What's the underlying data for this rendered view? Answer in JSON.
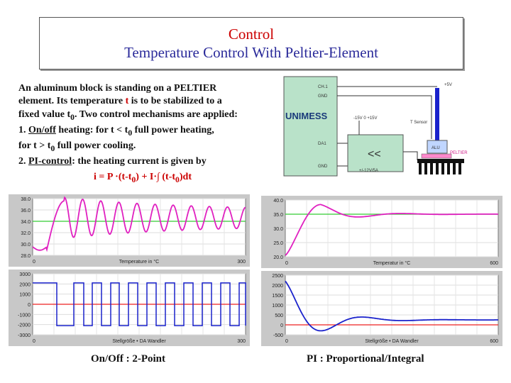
{
  "title": {
    "line1": "Control",
    "line2": "Temperature Control With Peltier-Element"
  },
  "intro": {
    "l1": "An aluminum block is standing on a PELTIER",
    "l2": "element. Its temperature",
    "t": "t",
    "l2b": "is to be stabilized to a",
    "l3": "fixed value t",
    "l3sub": "0",
    "l3b": ". Two control mechanisms are applied:",
    "l4a": "1.",
    "l4b": "On/off",
    "l4c": "heating: for t < t",
    "l4sub": "0",
    "l4d": "full power heating,",
    "l5a": "for t > t",
    "l5sub": "0",
    "l5b": "full power cooling.",
    "l6a": "2.",
    "l6b": "PI-control",
    "l6c": ": the heating current is given by"
  },
  "formula": {
    "a": "i = P ·(t-t",
    "sub1": "0",
    "b": ") + I·∫ (t-t",
    "sub2": "0",
    "c": ")dt"
  },
  "schematic": {
    "brand": "UNIMESS",
    "ch1": "CH.1",
    "gnd1": "GND",
    "da1": "DA1",
    "gnd2": "GND",
    "plus5": "+5V",
    "supply": "-15V   0   +15V",
    "sensor": "T Sensor",
    "alu": "ALU",
    "peltier": "PELTIER",
    "amp": "+/-12V/5A",
    "amp_symbol": "<<"
  },
  "colors": {
    "title_red": "#cc0000",
    "title_blue": "#2a2a9a",
    "trace_magenta": "#e020c0",
    "trace_green": "#33cc33",
    "trace_blue": "#1a22cc",
    "zero_red": "#ee2222",
    "panel_bg": "#c8c8c8"
  },
  "plots": {
    "onoff_temp": {
      "xlabel": "Temperature in °C",
      "x_end": "300",
      "x0": "0",
      "yticks": [
        "38.0",
        "36.0",
        "34.0",
        "32.0",
        "30.0",
        "28.0"
      ],
      "ylim": [
        28,
        38
      ],
      "setpoint": 34,
      "xmax": 300
    },
    "onoff_current": {
      "xlabel": "Stellgröße • DA Wandler",
      "x_end": "300",
      "x0": "0",
      "yticks": [
        "3000",
        "2000",
        "1000",
        "0",
        "-1000",
        "-2000",
        "-3000"
      ],
      "ylim": [
        -3000,
        3000
      ],
      "xmax": 300
    },
    "pi_temp": {
      "xlabel": "Temperatur in °C",
      "x_end": "600",
      "x0": "0",
      "yticks": [
        "40.0",
        "35.0",
        "30.0",
        "25.0",
        "20.0"
      ],
      "ylim": [
        20,
        40
      ],
      "setpoint": 35,
      "xmax": 600
    },
    "pi_current": {
      "xlabel": "Stellgröße • DA Wandler",
      "x_end": "600",
      "x0": "0",
      "yticks": [
        "2500",
        "2000",
        "1500",
        "1000",
        "500",
        "0",
        "-500"
      ],
      "ylim": [
        -500,
        2500
      ],
      "xmax": 600
    }
  },
  "captions": {
    "left": "On/Off  : 2-Point",
    "right": "PI   : Proportional/Integral"
  }
}
